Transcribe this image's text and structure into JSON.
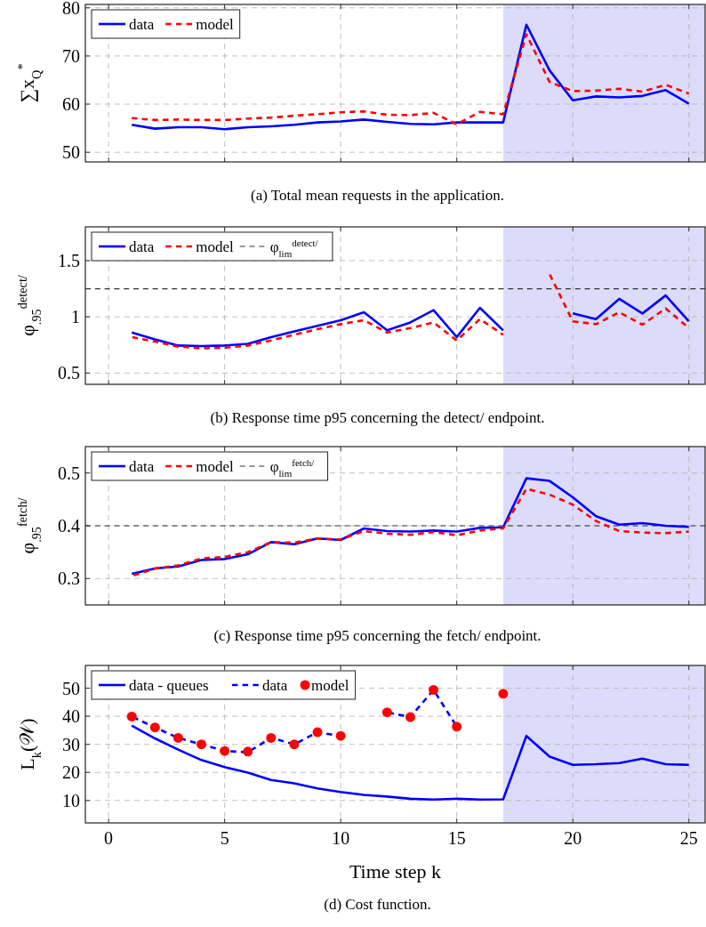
{
  "chart_data": [
    {
      "type": "line",
      "ylabel": "∑x$_{Q}$$^{*}$",
      "x": [
        1,
        2,
        3,
        4,
        5,
        6,
        7,
        8,
        9,
        10,
        11,
        12,
        13,
        14,
        15,
        16,
        17,
        18,
        19,
        20,
        21,
        22,
        23,
        24,
        25
      ],
      "xlim": [
        -1,
        25.7
      ],
      "xticks": [
        0,
        5,
        10,
        15,
        20,
        25
      ],
      "ylim": [
        48,
        80.7
      ],
      "yticks": [
        50,
        60,
        70,
        80
      ],
      "tick_labels": "y",
      "grid": true,
      "legend": "top left",
      "series": [
        {
          "name": "data",
          "color": "#0000ff",
          "line_style": "solid",
          "values": [
            55.7,
            54.9,
            55.2,
            55.2,
            54.8,
            55.2,
            55.4,
            55.7,
            56.2,
            56.4,
            56.8,
            56.3,
            55.9,
            55.8,
            56.2,
            56.2,
            56.2,
            76.5,
            67.0,
            60.8,
            61.6,
            61.4,
            61.7,
            62.9,
            60.1
          ]
        },
        {
          "name": "model",
          "color": "#ff0000",
          "line_style": "dashed",
          "values": [
            57.1,
            56.7,
            56.8,
            56.7,
            56.7,
            57.0,
            57.2,
            57.6,
            57.9,
            58.3,
            58.5,
            57.8,
            57.7,
            58.2,
            55.8,
            58.4,
            57.9,
            74.5,
            64.6,
            62.7,
            62.8,
            63.2,
            62.6,
            64.0,
            62.2
          ]
        }
      ],
      "bands": [
        {
          "axis": "x",
          "from": 17,
          "to": 25.7,
          "color": "#dcdcfa"
        }
      ],
      "annotations": [
        "(a) Total mean requests in the application."
      ]
    },
    {
      "type": "line",
      "ylabel": "φ$_{.95}$$^{detect/}$",
      "x": [
        1,
        2,
        3,
        4,
        5,
        6,
        7,
        8,
        9,
        10,
        11,
        12,
        13,
        14,
        15,
        16,
        17,
        18,
        19,
        20,
        21,
        22,
        23,
        24,
        25
      ],
      "xlim": [
        -1,
        25.7
      ],
      "xticks": [
        0,
        5,
        10,
        15,
        20,
        25
      ],
      "ylim": [
        0.4,
        1.8
      ],
      "yticks": [
        0.5,
        1,
        1.5
      ],
      "tick_labels": "y",
      "grid": true,
      "legend": "top left",
      "series": [
        {
          "name": "data",
          "color": "#0000ff",
          "line_style": "solid",
          "values": [
            0.86,
            0.8,
            0.745,
            0.74,
            0.745,
            0.76,
            0.82,
            0.87,
            0.92,
            0.97,
            1.04,
            0.88,
            0.95,
            1.06,
            0.82,
            1.08,
            0.88,
            null,
            null,
            1.03,
            0.98,
            1.16,
            1.03,
            1.19,
            0.96
          ]
        },
        {
          "name": "model",
          "color": "#ff0000",
          "line_style": "dashed",
          "values": [
            0.82,
            0.78,
            0.735,
            0.72,
            0.725,
            0.745,
            0.79,
            0.84,
            0.89,
            0.935,
            0.97,
            0.86,
            0.9,
            0.95,
            0.79,
            0.98,
            0.84,
            null,
            1.38,
            0.96,
            0.935,
            1.04,
            0.93,
            1.075,
            0.9
          ]
        }
      ],
      "ref_lines": [
        {
          "axis": "y",
          "value": 1.25,
          "label": "φ$_{lim}$$^{detect/}$",
          "color": "#333333",
          "line_style": "dashed"
        }
      ],
      "bands": [
        {
          "axis": "x",
          "from": 17,
          "to": 25.7,
          "color": "#dcdcfa"
        }
      ],
      "annotations": [
        "(b) Response time p95 concerning the detect/ endpoint."
      ]
    },
    {
      "type": "line",
      "ylabel": "φ$_{.95}$$^{fetch/}$",
      "x": [
        1,
        2,
        3,
        4,
        5,
        6,
        7,
        8,
        9,
        10,
        11,
        12,
        13,
        14,
        15,
        16,
        17,
        18,
        19,
        20,
        21,
        22,
        23,
        24,
        25
      ],
      "xlim": [
        -1,
        25.7
      ],
      "xticks": [
        0,
        5,
        10,
        15,
        20,
        25
      ],
      "ylim": [
        0.25,
        0.55
      ],
      "yticks": [
        0.3,
        0.4,
        0.5
      ],
      "tick_labels": "y",
      "grid": true,
      "legend": "top left",
      "series": [
        {
          "name": "data",
          "color": "#0000ff",
          "line_style": "solid",
          "values": [
            0.309,
            0.319,
            0.323,
            0.335,
            0.337,
            0.346,
            0.369,
            0.365,
            0.376,
            0.373,
            0.395,
            0.39,
            0.389,
            0.391,
            0.389,
            0.396,
            0.397,
            0.49,
            0.485,
            0.454,
            0.418,
            0.402,
            0.405,
            0.4,
            0.398
          ]
        },
        {
          "name": "model",
          "color": "#ff0000",
          "line_style": "dashed",
          "values": [
            0.305,
            0.319,
            0.325,
            0.338,
            0.341,
            0.35,
            0.369,
            0.368,
            0.376,
            0.374,
            0.39,
            0.385,
            0.383,
            0.388,
            0.382,
            0.391,
            0.395,
            0.47,
            0.459,
            0.44,
            0.409,
            0.39,
            0.387,
            0.386,
            0.389
          ]
        }
      ],
      "ref_lines": [
        {
          "axis": "y",
          "value": 0.4,
          "label": "φ$_{lim}$$^{fetch/}$",
          "color": "#333333",
          "line_style": "dashed"
        }
      ],
      "bands": [
        {
          "axis": "x",
          "from": 17,
          "to": 25.7,
          "color": "#dcdcfa"
        }
      ],
      "annotations": [
        "(c) Response time p95 concerning the fetch/ endpoint."
      ]
    },
    {
      "type": "line",
      "xlabel": "Time step k",
      "ylabel": "L$_{k}$(𝒲)",
      "x": [
        1,
        2,
        3,
        4,
        5,
        6,
        7,
        8,
        9,
        10,
        11,
        12,
        13,
        14,
        15,
        16,
        17,
        18,
        19,
        20,
        21,
        22,
        23,
        24,
        25
      ],
      "xlim": [
        -1,
        25.7
      ],
      "xticks": [
        0,
        5,
        10,
        15,
        20,
        25
      ],
      "ylim": [
        2,
        58.1
      ],
      "yticks": [
        10,
        20,
        30,
        40,
        50
      ],
      "grid": true,
      "legend": "top left",
      "series": [
        {
          "name": "data - queues",
          "color": "#0000ff",
          "line_style": "solid",
          "values": [
            36.7,
            32.1,
            28.1,
            24.4,
            21.9,
            19.9,
            17.3,
            16.1,
            14.3,
            13.0,
            12.0,
            11.4,
            10.6,
            10.3,
            10.6,
            10.3,
            10.4,
            33.0,
            25.6,
            22.7,
            22.9,
            23.3,
            24.9,
            22.9,
            22.7
          ]
        },
        {
          "name": "data",
          "color": "#0000ff",
          "line_style": "dashed",
          "values": [
            39.9,
            36.0,
            32.3,
            30.0,
            27.6,
            27.2,
            32.3,
            30.0,
            34.3,
            33.0,
            null,
            41.4,
            39.7,
            49.4,
            36.3,
            null,
            null,
            null,
            null,
            null,
            null,
            null,
            null,
            null,
            null
          ]
        },
        {
          "name": "model",
          "type": "scatter",
          "marker": "circle",
          "color": "#ff0000",
          "values": [
            39.9,
            36.0,
            32.3,
            30.0,
            27.6,
            27.4,
            32.3,
            30.0,
            34.3,
            33.0,
            null,
            41.4,
            39.7,
            49.4,
            36.3,
            null,
            48.0,
            null,
            null,
            null,
            null,
            null,
            null,
            null,
            null
          ]
        }
      ],
      "bands": [
        {
          "axis": "x",
          "from": 17,
          "to": 25.7,
          "color": "#dcdcfa"
        }
      ],
      "annotations": [
        "(d) Cost function."
      ]
    }
  ]
}
